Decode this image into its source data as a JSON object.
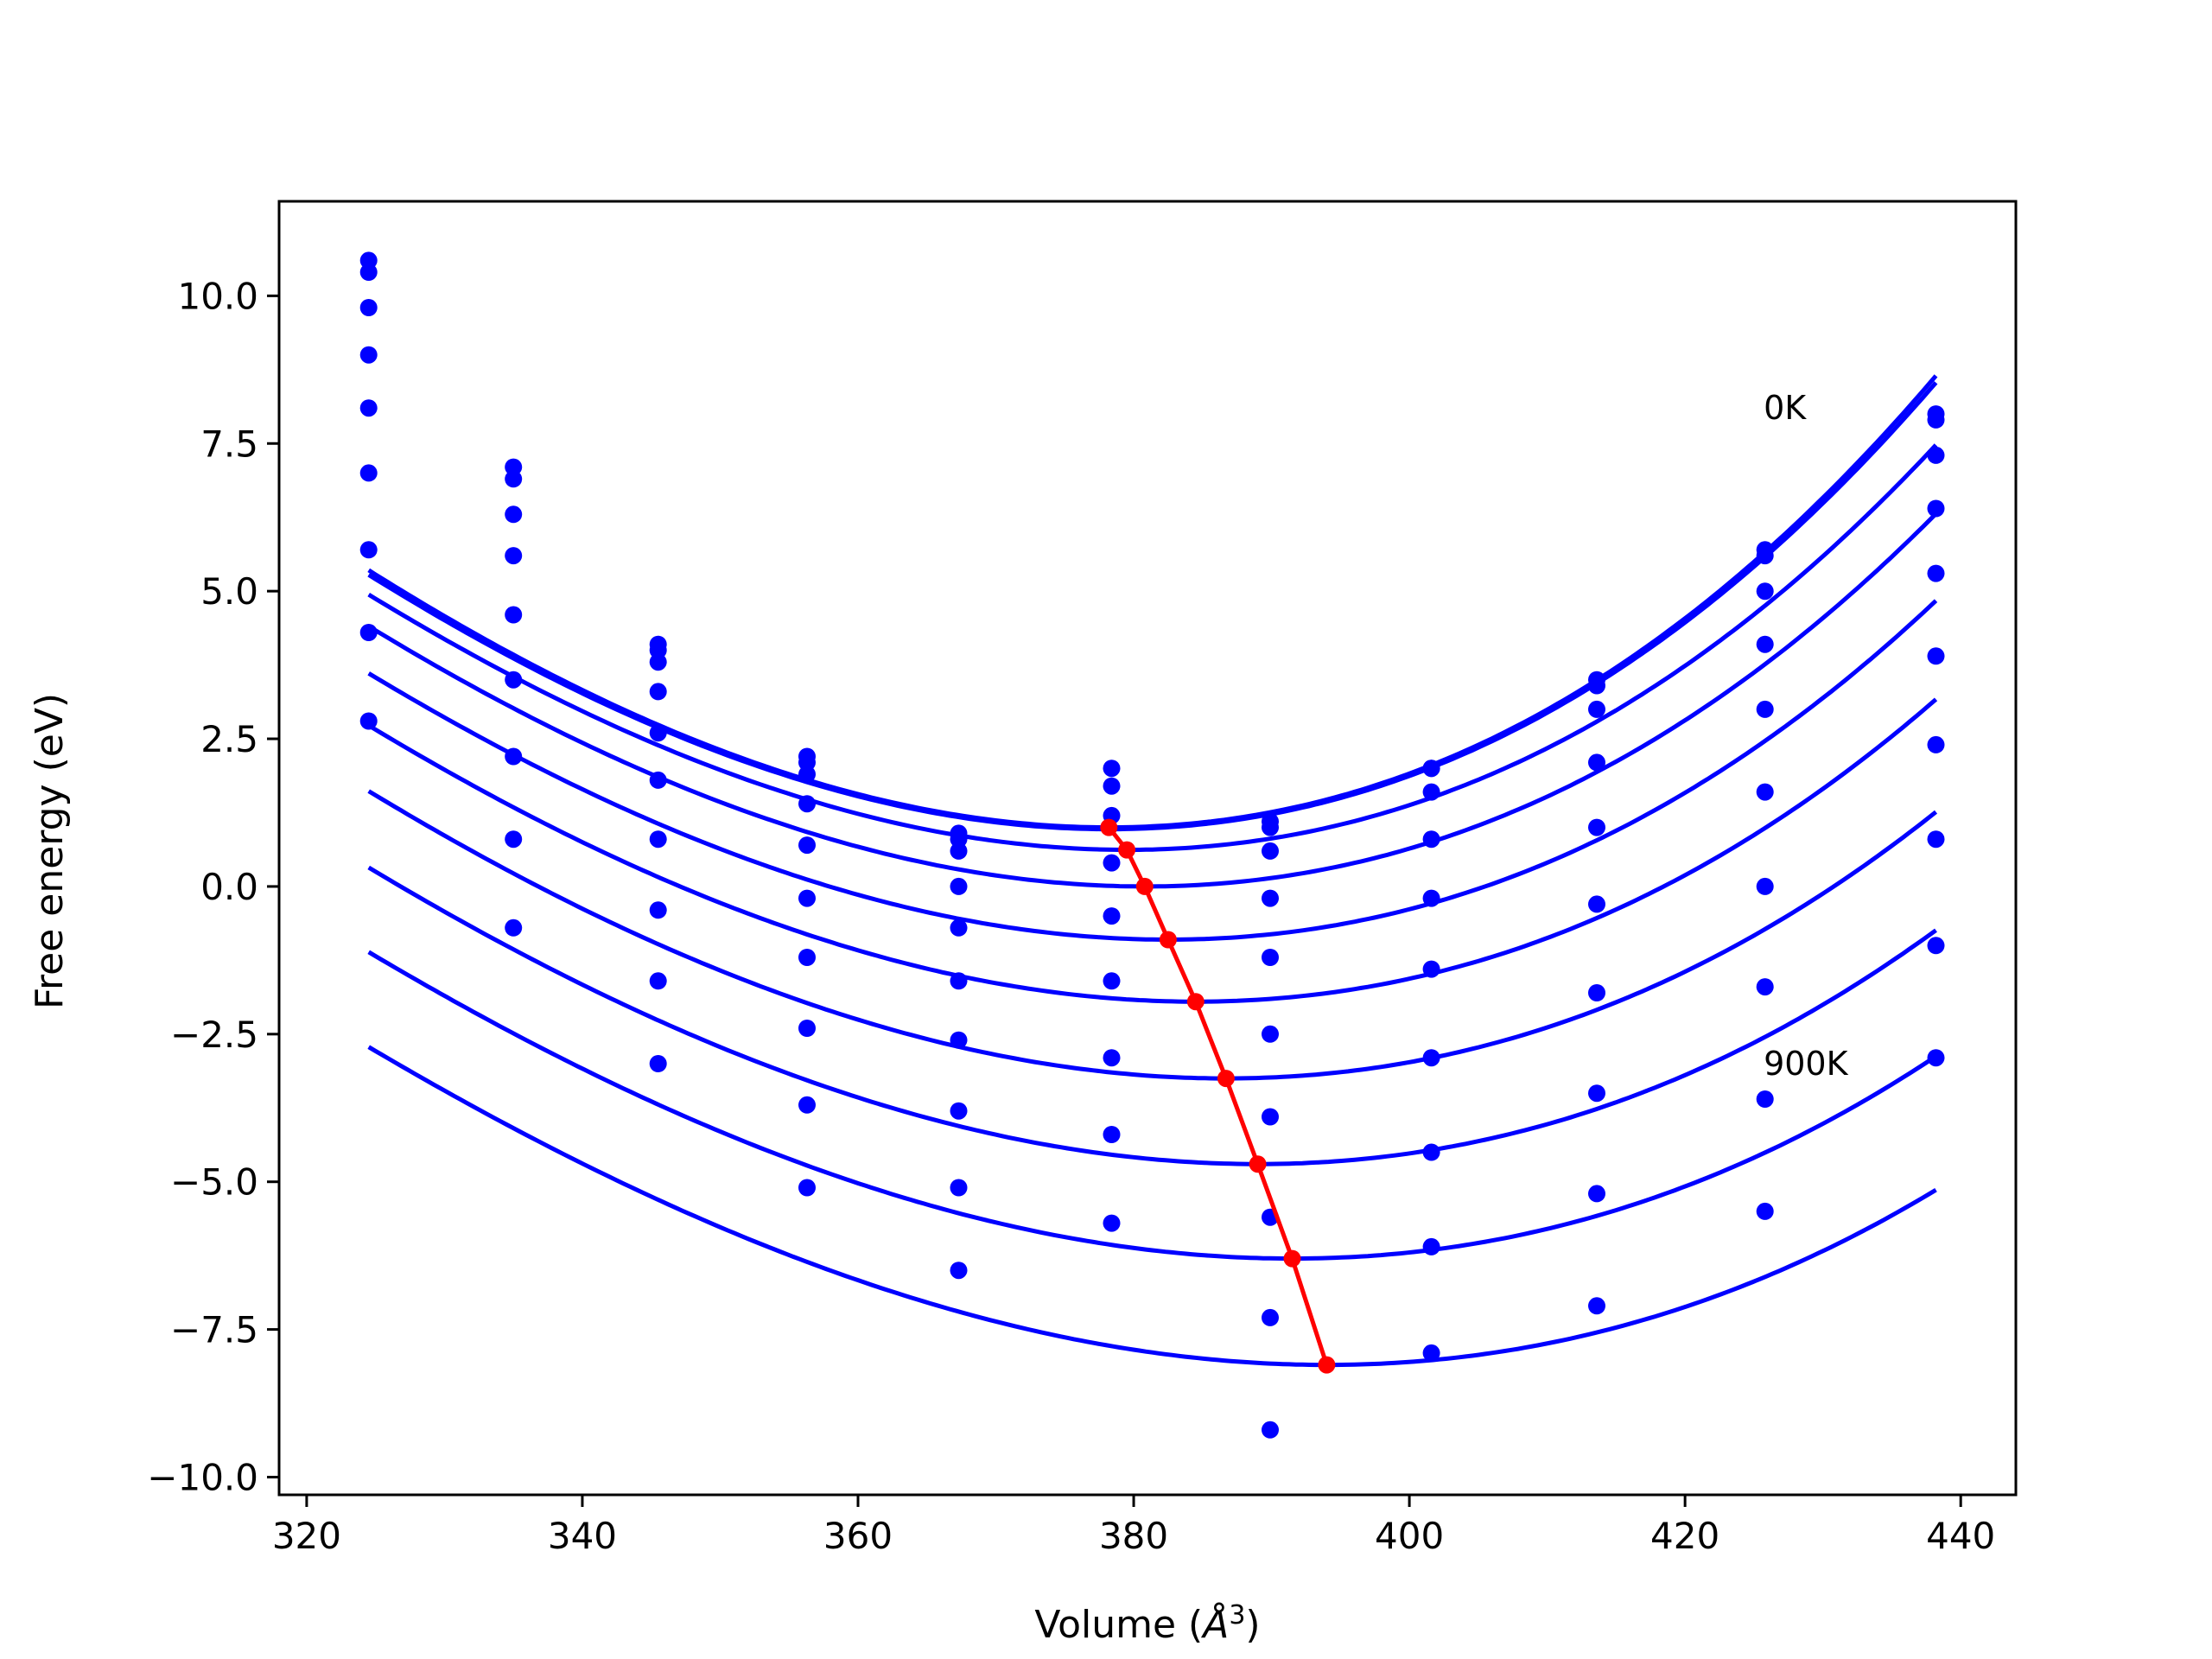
{
  "chart_data": {
    "type": "scatter",
    "title": "",
    "xlabel": "Volume (Å³)",
    "xlabel_parts": {
      "prefix": "Volume (",
      "symbol": "Å",
      "exponent": "3",
      "suffix": ")"
    },
    "ylabel": "Free energy (eV)",
    "xlim": [
      318,
      444
    ],
    "ylim": [
      -10.3,
      11.6
    ],
    "xticks": [
      320,
      340,
      360,
      380,
      400,
      420,
      440
    ],
    "xtick_labels": [
      "320",
      "340",
      "360",
      "380",
      "400",
      "420",
      "440"
    ],
    "yticks": [
      10.0,
      7.5,
      5.0,
      2.5,
      0.0,
      -2.5,
      -5.0,
      -7.5,
      -10.0
    ],
    "ytick_labels": [
      "10.0",
      "7.5",
      "5.0",
      "2.5",
      "0.0",
      "−2.5",
      "−5.0",
      "−7.5",
      "−10.0"
    ],
    "grid": false,
    "legend": "none",
    "annotations": [
      {
        "text": "0K",
        "x": 425.7,
        "y": 8.1
      },
      {
        "text": "900K",
        "x": 425.7,
        "y": -3.0
      }
    ],
    "volumes": [
      324.5,
      335.0,
      345.5,
      356.3,
      367.3,
      378.4,
      389.9,
      401.6,
      413.6,
      425.8,
      438.2
    ],
    "series_color": "#0000ff",
    "min_line_color": "#ff0000",
    "series": [
      {
        "points": [
          10.6,
          7.1,
          4.1,
          2.2,
          0.9,
          2.0,
          1.1,
          2.0,
          3.5,
          5.7,
          8.0
        ],
        "fit": {
          "v0": 378.2,
          "e0": 1.0,
          "a": 0.0018,
          "b": 0.003
        }
      },
      {
        "points": [
          10.4,
          6.9,
          4.0,
          2.1,
          0.8,
          1.7,
          1.0,
          2.0,
          3.4,
          5.6,
          7.9
        ],
        "fit": {
          "v0": 378.2,
          "e0": 0.97,
          "a": 0.00178,
          "b": 0.003
        }
      },
      {
        "points": [
          9.8,
          6.3,
          3.8,
          1.9,
          0.6,
          1.2,
          0.6,
          1.6,
          3.0,
          5.0,
          7.3
        ],
        "fit": {
          "v0": 379.5,
          "e0": 0.62,
          "a": 0.0017,
          "b": 0.0029
        }
      },
      {
        "points": [
          9.0,
          5.6,
          3.3,
          1.4,
          0.0,
          0.4,
          -0.2,
          0.8,
          2.1,
          4.1,
          6.4
        ],
        "fit": {
          "v0": 380.8,
          "e0": 0.0,
          "a": 0.00165,
          "b": 0.0028
        }
      },
      {
        "points": [
          8.1,
          4.6,
          2.6,
          0.7,
          -0.7,
          -0.5,
          -1.2,
          -0.2,
          1.0,
          3.0,
          5.3
        ],
        "fit": {
          "v0": 382.5,
          "e0": -0.9,
          "a": 0.0016,
          "b": 0.0028
        }
      },
      {
        "points": [
          7.0,
          3.5,
          1.8,
          -0.2,
          -1.6,
          -1.6,
          -2.5,
          -1.4,
          -0.3,
          1.6,
          3.9
        ],
        "fit": {
          "v0": 384.5,
          "e0": -1.95,
          "a": 0.00155,
          "b": 0.0027
        }
      },
      {
        "points": [
          5.7,
          2.2,
          0.8,
          -1.2,
          -2.6,
          -2.9,
          -3.9,
          -2.9,
          -1.8,
          0.0,
          2.4
        ],
        "fit": {
          "v0": 386.7,
          "e0": -3.25,
          "a": 0.0015,
          "b": 0.0026
        }
      },
      {
        "points": [
          4.3,
          0.8,
          -0.4,
          -2.4,
          -3.8,
          -4.2,
          -5.6,
          -4.5,
          -3.5,
          -1.7,
          0.8
        ],
        "fit": {
          "v0": 389.0,
          "e0": -4.7,
          "a": 0.00145,
          "b": 0.0026
        }
      },
      {
        "points": [
          2.8,
          -0.7,
          -1.6,
          -3.7,
          -5.1,
          -5.7,
          -7.3,
          -6.1,
          -5.2,
          -3.6,
          -1.0
        ],
        "fit": {
          "v0": 391.5,
          "e0": -6.3,
          "a": 0.0014,
          "b": 0.0026
        }
      },
      {
        "points": [
          null,
          null,
          -3.0,
          -5.1,
          -6.5,
          null,
          -9.2,
          -7.9,
          -7.1,
          -5.5,
          -2.9
        ],
        "fit": {
          "v0": 394.0,
          "e0": -8.1,
          "a": 0.00136,
          "b": 0.0026
        }
      }
    ],
    "minima": [
      {
        "x": 378.2,
        "y": 1.0
      },
      {
        "x": 379.5,
        "y": 0.62
      },
      {
        "x": 380.8,
        "y": 0.0
      },
      {
        "x": 382.5,
        "y": -0.9
      },
      {
        "x": 384.5,
        "y": -1.95
      },
      {
        "x": 386.7,
        "y": -3.25
      },
      {
        "x": 389.0,
        "y": -4.7
      },
      {
        "x": 391.5,
        "y": -6.3
      },
      {
        "x": 394.0,
        "y": -8.1
      }
    ]
  }
}
